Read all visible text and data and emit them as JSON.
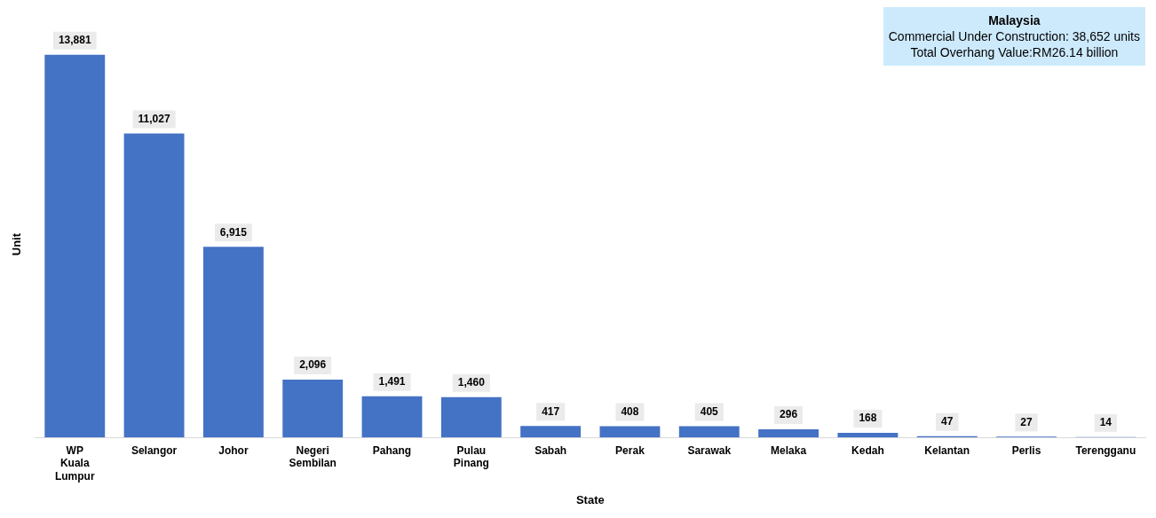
{
  "chart_data": {
    "type": "bar",
    "xlabel": "State",
    "ylabel": "Unit",
    "categories": [
      "WP Kuala Lumpur",
      "Selangor",
      "Johor",
      "Negeri Sembilan",
      "Pahang",
      "Pulau Pinang",
      "Sabah",
      "Perak",
      "Sarawak",
      "Melaka",
      "Kedah",
      "Kelantan",
      "Perlis",
      "Terengganu"
    ],
    "values": [
      13881,
      11027,
      6915,
      2096,
      1491,
      1460,
      417,
      408,
      405,
      296,
      168,
      47,
      27,
      14
    ],
    "value_labels": [
      "13,881",
      "11,027",
      "6,915",
      "2,096",
      "1,491",
      "1,460",
      "417",
      "408",
      "405",
      "296",
      "168",
      "47",
      "27",
      "14"
    ],
    "color": "#4472c4",
    "grid": false,
    "legend": false,
    "annotations": [
      "Malaysia",
      "Commercial Under Construction: 38,652 units",
      "Total Overhang Value:RM26.14 billion"
    ]
  }
}
